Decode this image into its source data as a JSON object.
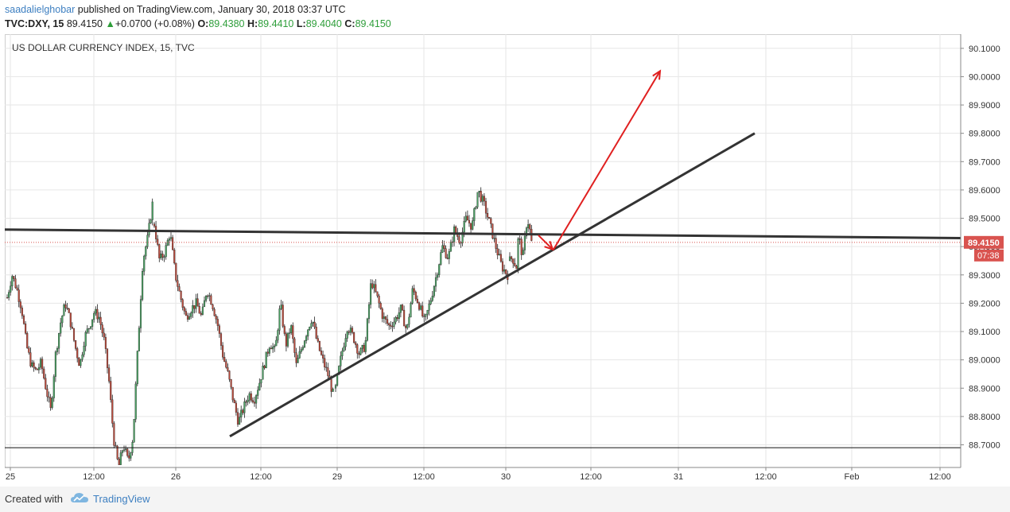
{
  "header": {
    "author": "saadalielghobar",
    "published_text": "published on TradingView.com, January 30, 2018 03:37 UTC",
    "symbol": "TVC:DXY, 15",
    "last": "89.4150",
    "up_arrow": "▲",
    "change": "+0.0700 (+0.08%)",
    "o_label": "O:",
    "o_value": "89.4380",
    "h_label": "H:",
    "h_value": "89.4410",
    "l_label": "L:",
    "l_value": "89.4040",
    "c_label": "C:",
    "c_value": "89.4150"
  },
  "chart_data": {
    "type": "candlestick",
    "title": "US DOLLAR CURRENCY INDEX, 15, TVC",
    "x_tick_labels": [
      "25",
      "12:00",
      "26",
      "12:00",
      "29",
      "12:00",
      "30",
      "12:00",
      "31",
      "12:00",
      "Feb",
      "12:00"
    ],
    "ylim": [
      88.62,
      90.15
    ],
    "y_ticks": [
      88.7,
      88.8,
      88.9,
      89.0,
      89.1,
      89.2,
      89.3,
      89.4,
      89.5,
      89.6,
      89.7,
      89.8,
      89.9,
      90.0,
      90.1
    ],
    "y_tick_labels": [
      "88.7000",
      "88.8000",
      "88.9000",
      "89.0000",
      "89.1000",
      "89.2000",
      "89.3000",
      "89.4000",
      "89.5000",
      "89.6000",
      "89.7000",
      "89.8000",
      "89.9000",
      "90.0000",
      "90.1000"
    ],
    "grid": true,
    "last_price_label": "89.4150",
    "countdown_label": "07:38",
    "last_price": 89.415,
    "support_level": 88.69,
    "colors": {
      "up": "#4a9e62",
      "down": "#b84a3c",
      "wick": "#222222",
      "trendline": "#333333",
      "arrow": "#e02020",
      "price_tag": "#d9534f",
      "grid": "#e6e6e6"
    },
    "candle_path_sessions": [
      {
        "label": "Jan 25",
        "points": [
          89.22,
          89.3,
          89.25,
          89.18,
          89.05,
          88.98,
          88.96,
          88.99,
          88.9,
          88.82,
          89.02,
          89.13,
          89.2,
          89.14,
          89.05,
          88.98,
          89.08,
          89.12,
          89.17,
          89.15,
          89.07,
          88.93,
          88.72,
          88.62,
          88.7,
          88.64,
          88.73,
          89.05,
          89.35,
          89.43,
          89.55
        ]
      },
      {
        "label": "Jan 26",
        "points": [
          89.48,
          89.35,
          89.38,
          89.45,
          89.3,
          89.22,
          89.15,
          89.18,
          89.2,
          89.15,
          89.25,
          89.2,
          89.13,
          89.02,
          88.95,
          88.86,
          88.78,
          88.83,
          88.88,
          88.86,
          88.92,
          88.99,
          89.06,
          89.03,
          89.2,
          89.05,
          89.12,
          88.98,
          89.04,
          89.1,
          89.15,
          89.06,
          89.0,
          88.95,
          88.88
        ]
      },
      {
        "label": "Jan 29",
        "points": [
          88.9,
          89.02,
          89.12,
          89.08,
          89.02,
          89.05,
          89.28,
          89.22,
          89.15,
          89.12,
          89.14,
          89.18,
          89.1,
          89.25,
          89.2,
          89.13,
          89.21,
          89.3,
          89.4,
          89.36,
          89.46,
          89.42,
          89.5,
          89.47,
          89.6,
          89.55,
          89.48,
          89.4,
          89.33,
          89.3
        ]
      },
      {
        "label": "Jan 30",
        "points": [
          89.35,
          89.36,
          89.35,
          89.32,
          89.44,
          89.4,
          89.36,
          89.43,
          89.5,
          89.47,
          89.415
        ]
      }
    ],
    "annotations": [
      {
        "type": "trendline",
        "name": "horizontal-resistance",
        "from": 89.46,
        "to": 89.43
      },
      {
        "type": "trendline",
        "name": "rising-support",
        "from": 88.73,
        "to": 89.8
      },
      {
        "type": "arrow",
        "name": "pullback-arrow",
        "from": 89.44,
        "to": 89.39
      },
      {
        "type": "arrow",
        "name": "target-arrow",
        "from": 89.39,
        "to": 90.02
      }
    ]
  },
  "footer": {
    "created_with": "Created with",
    "brand": "TradingView"
  }
}
